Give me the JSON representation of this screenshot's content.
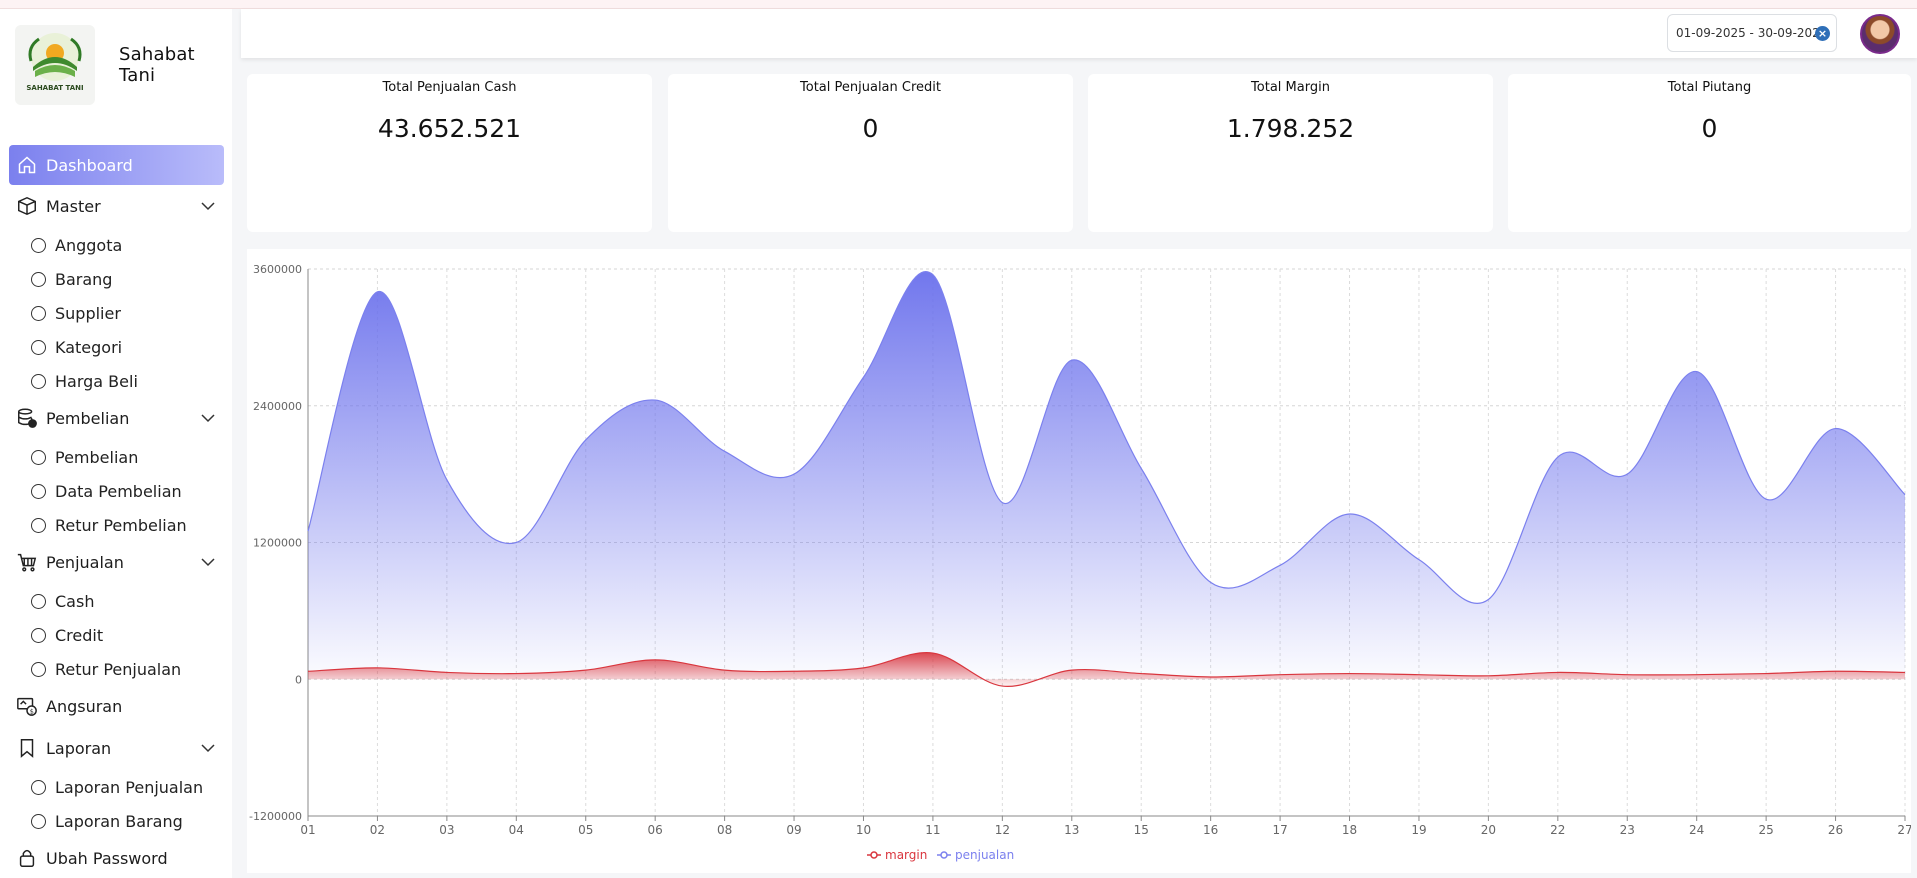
{
  "brand": {
    "name": "Sahabat Tani",
    "logo_text": "SAHABAT TANI"
  },
  "sidebar": {
    "items": [
      {
        "label": "Dashboard",
        "icon": "home-icon",
        "active": true
      },
      {
        "label": "Master",
        "icon": "box-icon",
        "expanded": true,
        "children": [
          "Anggota",
          "Barang",
          "Supplier",
          "Kategori",
          "Harga Beli"
        ]
      },
      {
        "label": "Pembelian",
        "icon": "database-icon",
        "expanded": true,
        "children": [
          "Pembelian",
          "Data Pembelian",
          "Retur Pembelian"
        ]
      },
      {
        "label": "Penjualan",
        "icon": "cart-icon",
        "expanded": true,
        "children": [
          "Cash",
          "Credit",
          "Retur Penjualan"
        ]
      },
      {
        "label": "Angsuran",
        "icon": "installment-icon"
      },
      {
        "label": "Laporan",
        "icon": "bookmark-icon",
        "expanded": true,
        "children": [
          "Laporan Penjualan",
          "Laporan Barang"
        ]
      },
      {
        "label": "Ubah Password",
        "icon": "lock-icon"
      }
    ]
  },
  "header": {
    "date_range": "01-09-2025 - 30-09-2025"
  },
  "cards": [
    {
      "label": "Total Penjualan Cash",
      "value": "43.652.521"
    },
    {
      "label": "Total Penjualan Credit",
      "value": "0"
    },
    {
      "label": "Total Margin",
      "value": "1.798.252"
    },
    {
      "label": "Total Piutang",
      "value": "0"
    }
  ],
  "chart_data": {
    "type": "area",
    "categories": [
      "01",
      "02",
      "03",
      "04",
      "05",
      "06",
      "08",
      "09",
      "10",
      "11",
      "12",
      "13",
      "15",
      "16",
      "17",
      "18",
      "19",
      "20",
      "22",
      "23",
      "24",
      "25",
      "26",
      "27"
    ],
    "series": [
      {
        "name": "margin",
        "color": "#d9363e",
        "values": [
          70000,
          100000,
          60000,
          50000,
          80000,
          170000,
          80000,
          70000,
          100000,
          230000,
          -60000,
          80000,
          50000,
          20000,
          40000,
          50000,
          40000,
          30000,
          60000,
          40000,
          40000,
          50000,
          70000,
          60000
        ]
      },
      {
        "name": "penjualan",
        "color": "#7b80ee",
        "values": [
          1300000,
          3400000,
          1750000,
          1200000,
          2100000,
          2450000,
          2000000,
          1800000,
          2650000,
          3550000,
          1550000,
          2800000,
          1850000,
          850000,
          1000000,
          1450000,
          1050000,
          700000,
          1950000,
          1800000,
          2700000,
          1580000,
          2200000,
          1620000
        ]
      }
    ],
    "yticks": [
      "3600000",
      "2400000",
      "1200000",
      "0",
      "-1200000"
    ],
    "ylim": [
      -1200000,
      3600000
    ],
    "grid": true,
    "legend": "bottom"
  }
}
